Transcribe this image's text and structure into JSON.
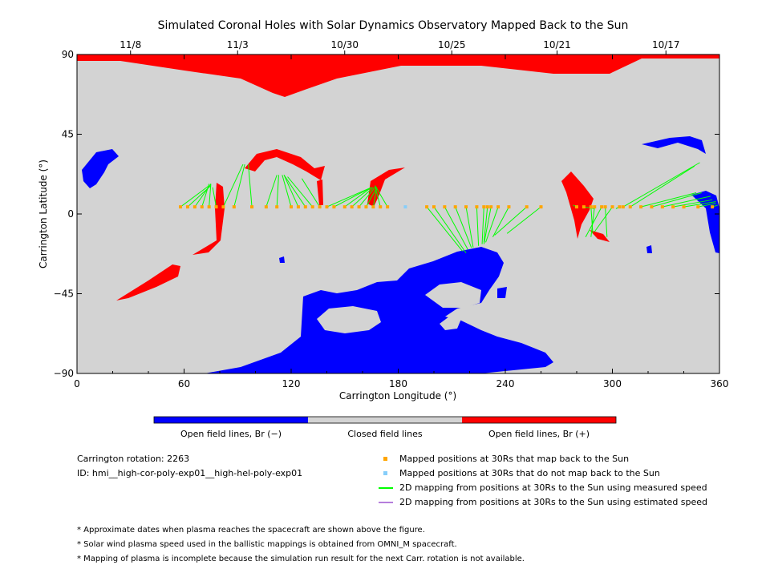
{
  "chart_data": {
    "type": "scatter",
    "title": "Simulated Coronal Holes with Solar Dynamics Observatory Mapped Back to the Sun",
    "xlabel": "Carrington Longitude (°)",
    "ylabel": "Carrington Latitude (°)",
    "xlim": [
      0,
      360
    ],
    "ylim": [
      -90,
      90
    ],
    "x_ticks": [
      "0",
      "60",
      "120",
      "180",
      "240",
      "300",
      "360"
    ],
    "y_ticks": [
      "90",
      "45",
      "0",
      "−45",
      "−90"
    ],
    "top_dates": [
      {
        "label": "11/8",
        "lon": 30
      },
      {
        "label": "11/3",
        "lon": 90
      },
      {
        "label": "10/30",
        "lon": 150
      },
      {
        "label": "10/25",
        "lon": 210
      },
      {
        "label": "10/21",
        "lon": 269
      },
      {
        "label": "10/17",
        "lon": 330
      }
    ],
    "colorbar": {
      "segments": [
        {
          "label": "Open field lines, Br (−)",
          "color": "#0000ff"
        },
        {
          "label": "Closed field lines",
          "color": "#d3d3d3"
        },
        {
          "label": "Open field lines, Br (+)",
          "color": "#ff0000"
        }
      ]
    },
    "series": [
      {
        "name": "Mapped positions at 30Rs that map back to the Sun",
        "color": "#ffa500",
        "points": [
          {
            "x": 58,
            "y": 4,
            "sun": [
              74,
              16
            ]
          },
          {
            "x": 62,
            "y": 4,
            "sun": [
              75,
              16
            ]
          },
          {
            "x": 66,
            "y": 4,
            "sun": [
              75,
              17
            ]
          },
          {
            "x": 70,
            "y": 4,
            "sun": [
              74,
              17
            ]
          },
          {
            "x": 74,
            "y": 4,
            "sun": [
              75,
              17
            ]
          },
          {
            "x": 78,
            "y": 4,
            "sun": [
              76,
              15
            ]
          },
          {
            "x": 82,
            "y": 4,
            "sun": [
              93,
              28
            ]
          },
          {
            "x": 88,
            "y": 4,
            "sun": [
              94,
              28
            ]
          },
          {
            "x": 98,
            "y": 4,
            "sun": [
              96,
              28
            ]
          },
          {
            "x": 106,
            "y": 4,
            "sun": [
              112,
              22
            ]
          },
          {
            "x": 112,
            "y": 4,
            "sun": [
              113,
              22
            ]
          },
          {
            "x": 120,
            "y": 4,
            "sun": [
              115,
              22
            ]
          },
          {
            "x": 124,
            "y": 4,
            "sun": [
              116,
              22
            ]
          },
          {
            "x": 128,
            "y": 4,
            "sun": [
              116,
              22
            ]
          },
          {
            "x": 132,
            "y": 4,
            "sun": [
              118,
              21
            ]
          },
          {
            "x": 136,
            "y": 4,
            "sun": [
              126,
              20
            ]
          },
          {
            "x": 140,
            "y": 4,
            "sun": [
              165,
              15
            ]
          },
          {
            "x": 144,
            "y": 4,
            "sun": [
              165,
              15
            ]
          },
          {
            "x": 150,
            "y": 4,
            "sun": [
              165,
              15
            ]
          },
          {
            "x": 154,
            "y": 4,
            "sun": [
              166,
              15
            ]
          },
          {
            "x": 158,
            "y": 4,
            "sun": [
              167,
              15
            ]
          },
          {
            "x": 162,
            "y": 4,
            "sun": [
              168,
              15
            ]
          },
          {
            "x": 166,
            "y": 4,
            "sun": [
              168,
              15
            ]
          },
          {
            "x": 170,
            "y": 4,
            "sun": [
              167,
              16
            ]
          },
          {
            "x": 174,
            "y": 4,
            "sun": [
              167,
              16
            ]
          },
          {
            "x": 196,
            "y": 4,
            "sun": [
              216,
              -21
            ]
          },
          {
            "x": 200,
            "y": 4,
            "sun": [
              218,
              -22
            ]
          },
          {
            "x": 206,
            "y": 4,
            "sun": [
              219,
              -20
            ]
          },
          {
            "x": 212,
            "y": 4,
            "sun": [
              221,
              -19
            ]
          },
          {
            "x": 218,
            "y": 4,
            "sun": [
              222,
              -19
            ]
          },
          {
            "x": 224,
            "y": 4,
            "sun": [
              225,
              -18
            ]
          },
          {
            "x": 228,
            "y": 4,
            "sun": [
              227,
              -17
            ]
          },
          {
            "x": 230,
            "y": 4,
            "sun": [
              228,
              -16
            ]
          },
          {
            "x": 232,
            "y": 4,
            "sun": [
              228,
              -17
            ]
          },
          {
            "x": 236,
            "y": 4,
            "sun": [
              229,
              -16
            ]
          },
          {
            "x": 242,
            "y": 4,
            "sun": [
              233,
              -13
            ]
          },
          {
            "x": 252,
            "y": 4,
            "sun": [
              234,
              -12
            ]
          },
          {
            "x": 260,
            "y": 4,
            "sun": [
              241,
              -11
            ]
          },
          {
            "x": 280,
            "y": 4,
            "sun": [
              278,
              5
            ]
          },
          {
            "x": 284,
            "y": 4,
            "sun": [
              290,
              3
            ]
          },
          {
            "x": 288,
            "y": 4,
            "sun": [
              289,
              -11
            ]
          },
          {
            "x": 290,
            "y": 4,
            "sun": [
              288,
              -13
            ]
          },
          {
            "x": 294,
            "y": 4,
            "sun": [
              285,
              -13
            ]
          },
          {
            "x": 296,
            "y": 4,
            "sun": [
              297,
              -13
            ]
          },
          {
            "x": 300,
            "y": 4,
            "sun": [
              290,
              -10
            ]
          },
          {
            "x": 304,
            "y": 4,
            "sun": [
              302,
              3
            ]
          },
          {
            "x": 306,
            "y": 4,
            "sun": [
              349,
              29
            ]
          },
          {
            "x": 310,
            "y": 4,
            "sun": [
              346,
              27
            ]
          },
          {
            "x": 316,
            "y": 4,
            "sun": [
              347,
              12
            ]
          },
          {
            "x": 322,
            "y": 4,
            "sun": [
              350,
              12
            ]
          },
          {
            "x": 328,
            "y": 4,
            "sun": [
              355,
              10
            ]
          },
          {
            "x": 334,
            "y": 4,
            "sun": [
              356,
              8
            ]
          },
          {
            "x": 340,
            "y": 4,
            "sun": [
              358,
              7
            ]
          },
          {
            "x": 348,
            "y": 4,
            "sun": [
              358,
              6
            ]
          },
          {
            "x": 356,
            "y": 4,
            "sun": [
              359,
              5
            ]
          }
        ]
      },
      {
        "name": "Mapped positions at 30Rs that do not map back to the Sun",
        "color": "#87cefa",
        "points": [
          {
            "x": 184,
            "y": 4
          }
        ]
      },
      {
        "name": "2D mapping from positions at 30Rs to the Sun using measured speed",
        "color": "#00ff00"
      },
      {
        "name": "2D mapping from positions at 30Rs to the Sun using estimated speed",
        "color": "#b57edc"
      }
    ]
  },
  "info": {
    "rotation": "Carrington rotation: 2263",
    "id": "ID: hmi__high-cor-poly-exp01__high-hel-poly-exp01"
  },
  "footnotes": [
    "* Approximate dates when plasma reaches the spacecraft are shown above the figure.",
    "* Solar wind plasma speed used in the ballistic mappings is obtained from OMNI_M spacecraft.",
    "* Mapping of plasma is incomplete because the simulation run result for the next Carr. rotation is not available."
  ]
}
